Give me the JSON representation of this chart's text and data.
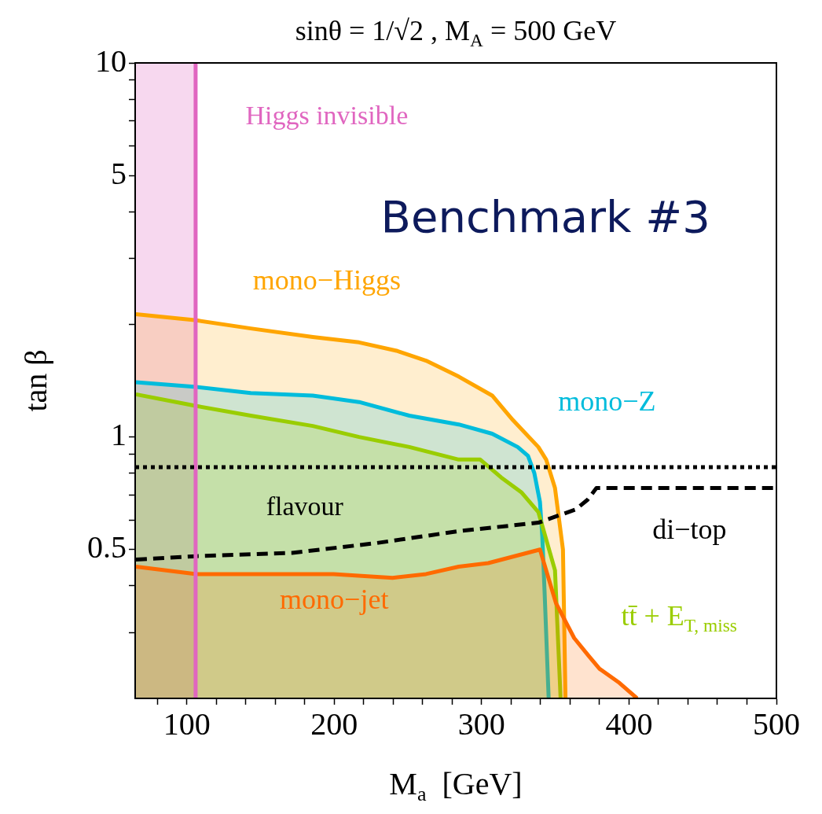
{
  "chart_data": {
    "type": "area",
    "title": "sinθ = 1/√2 , M$_{A}$ = 500 GeV",
    "xlabel": "M$_{a}$  [GeV]",
    "ylabel": "tan β",
    "log": "y",
    "xlim": [
      65,
      500
    ],
    "xticks": [
      {
        "value": 80,
        "label": null
      },
      100,
      {
        "value": 120,
        "label": null
      },
      {
        "value": 140,
        "label": null
      },
      {
        "value": 160,
        "label": null
      },
      {
        "value": 180,
        "label": null
      },
      200,
      {
        "value": 220,
        "label": null
      },
      {
        "value": 240,
        "label": null
      },
      {
        "value": 260,
        "label": null
      },
      {
        "value": 280,
        "label": null
      },
      300,
      {
        "value": 320,
        "label": null
      },
      {
        "value": 340,
        "label": null
      },
      {
        "value": 360,
        "label": null
      },
      {
        "value": 380,
        "label": null
      },
      400,
      {
        "value": 420,
        "label": null
      },
      {
        "value": 440,
        "label": null
      },
      {
        "value": 460,
        "label": null
      },
      {
        "value": 480,
        "label": null
      },
      500
    ],
    "ylim": [
      0.2,
      10
    ],
    "yticks": [
      {
        "value": 0.3,
        "label": null
      },
      {
        "value": 0.4,
        "label": null
      },
      0.5,
      {
        "value": 0.6,
        "label": null
      },
      {
        "value": 0.7,
        "label": null
      },
      {
        "value": 0.8,
        "label": null
      },
      {
        "value": 0.9,
        "label": null
      },
      1,
      {
        "value": 2,
        "label": null
      },
      {
        "value": 3,
        "label": null
      },
      {
        "value": 4,
        "label": null
      },
      5,
      {
        "value": 6,
        "label": null
      },
      {
        "value": 7,
        "label": null
      },
      {
        "value": 8,
        "label": null
      },
      {
        "value": 9,
        "label": null
      },
      10
    ],
    "series": [
      {
        "name": "mono−jet",
        "color": "#ff6a00",
        "x": [
          65.5,
          106.6,
          129.3,
          152,
          177.4,
          199.6,
          239.6,
          262.3,
          284.5,
          304.5,
          339.6,
          350.4,
          362.8,
          372.6,
          380,
          393.5,
          405.5
        ],
        "values": [
          0.45,
          0.43,
          0.43,
          0.43,
          0.43,
          0.43,
          0.42,
          0.43,
          0.45,
          0.46,
          0.5,
          0.36,
          0.29,
          0.26,
          0.24,
          0.22,
          0.2
        ]
      },
      {
        "name": "tt̄ + E$_{T, miss}$",
        "color": "#9acd00",
        "x": [
          65.5,
          106.6,
          143.4,
          185.5,
          216.9,
          251,
          284.5,
          299.1,
          313.2,
          327.2,
          338.5,
          349.8,
          353.6
        ],
        "values": [
          1.3,
          1.21,
          1.14,
          1.07,
          1.0,
          0.94,
          0.87,
          0.87,
          0.78,
          0.71,
          0.63,
          0.44,
          0.2
        ]
      },
      {
        "name": "mono−Z",
        "color": "#00bcdc",
        "x": [
          65.5,
          106.6,
          143.4,
          185.5,
          216.9,
          251,
          284.5,
          307.2,
          324.5,
          331.5,
          335.8,
          339.6,
          341.2,
          342.8,
          345.5
        ],
        "values": [
          1.4,
          1.36,
          1.31,
          1.29,
          1.24,
          1.14,
          1.08,
          1.02,
          0.94,
          0.89,
          0.8,
          0.67,
          0.54,
          0.38,
          0.2
        ]
      },
      {
        "name": "mono−Higgs",
        "color": "#ffa500",
        "x": [
          65.5,
          106.6,
          143.4,
          185.5,
          216.9,
          242.3,
          262.3,
          284.5,
          307.2,
          321.2,
          338.5,
          343.8,
          349.8,
          355.2,
          356.9
        ],
        "values": [
          2.13,
          2.05,
          1.95,
          1.85,
          1.79,
          1.7,
          1.6,
          1.45,
          1.29,
          1.11,
          0.94,
          0.87,
          0.73,
          0.5,
          0.2
        ]
      },
      {
        "name": "di−top",
        "type": "line",
        "line_style": "dashed",
        "color": "#000000",
        "x": [
          65.5,
          106.6,
          171.5,
          228.2,
          284.5,
          338.5,
          363.9,
          372,
          377.9,
          500
        ],
        "values": [
          0.47,
          0.48,
          0.49,
          0.52,
          0.56,
          0.59,
          0.64,
          0.68,
          0.73,
          0.73
        ]
      }
    ],
    "bands": [
      {
        "axis": "x",
        "from": 65,
        "to": 106,
        "color": "#f7d8ef"
      }
    ],
    "ref_lines": [
      {
        "axis": "x",
        "value": 106,
        "label": "Higgs invisible",
        "color": "#e066c0"
      },
      {
        "axis": "y",
        "value": 0.83,
        "label": "flavour",
        "color": "#000000",
        "line_style": "dotted"
      }
    ],
    "annotations": [
      "Benchmark #3"
    ]
  }
}
